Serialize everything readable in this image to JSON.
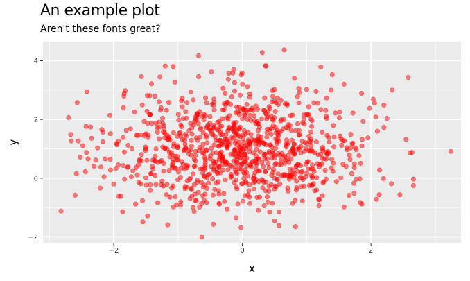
{
  "chart_data": {
    "type": "scatter",
    "title": "An example plot",
    "subtitle": "Aren't these fonts great?",
    "xlabel": "x",
    "ylabel": "y",
    "xlim": [
      -3.1,
      3.4
    ],
    "ylim": [
      -2.2,
      4.65
    ],
    "xticks": [
      -2,
      0,
      2
    ],
    "yticks": [
      -2,
      0,
      2,
      4
    ],
    "grid": true,
    "legend": "none",
    "point_color": "#ff0000",
    "point_opacity": 0.5,
    "panel_background": "#ebebeb",
    "grid_color": "#ffffff",
    "n_points": 1000,
    "x_mean": 0.0,
    "x_sd": 1.0,
    "y_mean": 1.0,
    "y_sd": 1.0,
    "points": [
      {
        "x": -2.82,
        "y": -1.12
      },
      {
        "x": -2.67,
        "y": 1.49
      },
      {
        "x": -2.66,
        "y": 1.27
      },
      {
        "x": -2.6,
        "y": -0.58
      },
      {
        "x": -2.55,
        "y": 1.27
      },
      {
        "x": -2.44,
        "y": 0.22
      },
      {
        "x": -2.28,
        "y": 0.62
      },
      {
        "x": -2.2,
        "y": 0.38
      },
      {
        "x": -2.15,
        "y": 0.05
      },
      {
        "x": -2.05,
        "y": 0.28
      },
      {
        "x": -2.0,
        "y": -0.2
      },
      {
        "x": -1.95,
        "y": 1.14
      },
      {
        "x": -1.92,
        "y": -0.62
      },
      {
        "x": -1.86,
        "y": -1.14
      },
      {
        "x": -1.85,
        "y": 2.4
      },
      {
        "x": -1.82,
        "y": 2.98
      },
      {
        "x": -1.74,
        "y": 1.68
      },
      {
        "x": -1.66,
        "y": -0.88
      },
      {
        "x": -1.6,
        "y": 0.6
      },
      {
        "x": -1.57,
        "y": 3.46
      },
      {
        "x": -1.4,
        "y": 0.4
      },
      {
        "x": -1.36,
        "y": 2.79
      },
      {
        "x": -1.2,
        "y": 3.82
      },
      {
        "x": -1.18,
        "y": -0.56
      },
      {
        "x": -1.05,
        "y": 3.27
      },
      {
        "x": -0.96,
        "y": -0.92
      },
      {
        "x": -0.68,
        "y": 4.17
      },
      {
        "x": -0.68,
        "y": 3.46
      },
      {
        "x": -0.63,
        "y": -2.0
      },
      {
        "x": -0.47,
        "y": 2.52
      },
      {
        "x": -0.45,
        "y": -1.57
      },
      {
        "x": -0.3,
        "y": 3.06
      },
      {
        "x": -0.21,
        "y": 3.57
      },
      {
        "x": -0.12,
        "y": 2.97
      },
      {
        "x": -0.05,
        "y": 2.42
      },
      {
        "x": -0.02,
        "y": -1.68
      },
      {
        "x": 0.08,
        "y": 3.12
      },
      {
        "x": 0.31,
        "y": 4.28
      },
      {
        "x": 0.36,
        "y": 3.83
      },
      {
        "x": 0.5,
        "y": -1.45
      },
      {
        "x": 0.57,
        "y": -1.61
      },
      {
        "x": 0.65,
        "y": 4.37
      },
      {
        "x": 0.81,
        "y": 3.4
      },
      {
        "x": 1.0,
        "y": 3.02
      },
      {
        "x": 1.22,
        "y": 3.79
      },
      {
        "x": 1.38,
        "y": 3.0
      },
      {
        "x": 1.58,
        "y": 3.2
      },
      {
        "x": 1.72,
        "y": 2.22
      },
      {
        "x": 1.86,
        "y": -0.88
      },
      {
        "x": 1.98,
        "y": 2.38
      },
      {
        "x": 2.1,
        "y": 1.6
      },
      {
        "x": 2.2,
        "y": 2.49
      },
      {
        "x": 2.33,
        "y": 3.0
      },
      {
        "x": 2.45,
        "y": -0.56
      },
      {
        "x": 2.58,
        "y": 3.43
      },
      {
        "x": 2.66,
        "y": -0.03
      },
      {
        "x": 2.66,
        "y": -0.25
      },
      {
        "x": 3.24,
        "y": 0.91
      }
    ]
  }
}
